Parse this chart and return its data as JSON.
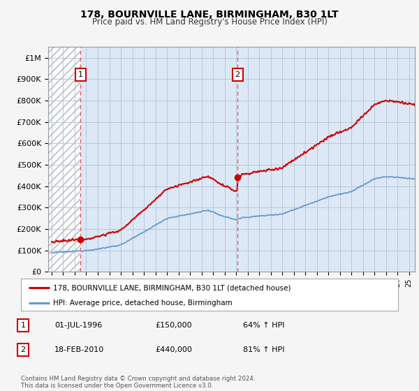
{
  "title": "178, BOURNVILLE LANE, BIRMINGHAM, B30 1LT",
  "subtitle": "Price paid vs. HM Land Registry's House Price Index (HPI)",
  "ylabel_ticks": [
    "£0",
    "£100K",
    "£200K",
    "£300K",
    "£400K",
    "£500K",
    "£600K",
    "£700K",
    "£800K",
    "£900K",
    "£1M"
  ],
  "ytick_vals": [
    0,
    100000,
    200000,
    300000,
    400000,
    500000,
    600000,
    700000,
    800000,
    900000,
    1000000
  ],
  "ylim": [
    0,
    1050000
  ],
  "xlim_start": 1993.7,
  "xlim_end": 2025.5,
  "sale1_x": 1996.5,
  "sale1_y": 150000,
  "sale1_label": "1",
  "sale2_x": 2010.12,
  "sale2_y": 440000,
  "sale2_label": "2",
  "vline1_x": 1996.5,
  "vline2_x": 2010.12,
  "price_line_color": "#cc0000",
  "hpi_line_color": "#6699cc",
  "vline_color": "#e06060",
  "annotation_box_color": "#cc0000",
  "background_color": "#f5f5f5",
  "plot_bg_color": "#dce8f5",
  "hatched_bg_color": "#c8c8c8",
  "legend_label1": "178, BOURNVILLE LANE, BIRMINGHAM, B30 1LT (detached house)",
  "legend_label2": "HPI: Average price, detached house, Birmingham",
  "footer_text": "Contains HM Land Registry data © Crown copyright and database right 2024.\nThis data is licensed under the Open Government Licence v3.0.",
  "table_rows": [
    {
      "num": "1",
      "date": "01-JUL-1996",
      "price": "£150,000",
      "hpi": "64% ↑ HPI"
    },
    {
      "num": "2",
      "date": "18-FEB-2010",
      "price": "£440,000",
      "hpi": "81% ↑ HPI"
    }
  ]
}
